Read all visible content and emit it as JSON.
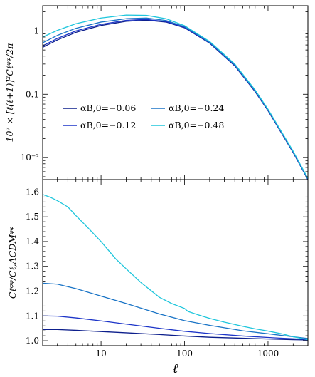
{
  "chart_data": [
    {
      "type": "line",
      "panel": "top",
      "title": "",
      "xlabel": "",
      "ylabel": "10⁷ × [ℓ(ℓ+1)]²Cℓᵠᵠ/2π",
      "xscale": "log",
      "yscale": "log",
      "xlim": [
        2,
        3000
      ],
      "ylim": [
        0.0045,
        2.5
      ],
      "yticks": [
        0.01,
        0.1,
        1
      ],
      "yticklabels": [
        "10⁻²",
        "0.1",
        "1"
      ],
      "legend_position": "center-left",
      "series": [
        {
          "name": "αB,0=−0.06",
          "color": "#0d1f8c",
          "x": [
            2,
            3,
            5,
            10,
            20,
            35,
            60,
            100,
            200,
            400,
            700,
            1000,
            2000,
            3000
          ],
          "y": [
            0.55,
            0.72,
            0.95,
            1.22,
            1.42,
            1.48,
            1.38,
            1.12,
            0.64,
            0.28,
            0.11,
            0.055,
            0.012,
            0.0045
          ]
        },
        {
          "name": "αB,0=−0.12",
          "color": "#1c34c8",
          "x": [
            2,
            3,
            5,
            10,
            20,
            35,
            60,
            100,
            200,
            400,
            700,
            1000,
            2000,
            3000
          ],
          "y": [
            0.58,
            0.76,
            1.0,
            1.27,
            1.47,
            1.52,
            1.41,
            1.14,
            0.65,
            0.285,
            0.112,
            0.056,
            0.0122,
            0.0045
          ]
        },
        {
          "name": "αB,0=−0.24",
          "color": "#1a74c6",
          "x": [
            2,
            3,
            5,
            10,
            20,
            35,
            60,
            100,
            200,
            400,
            700,
            1000,
            2000,
            3000
          ],
          "y": [
            0.65,
            0.85,
            1.1,
            1.38,
            1.56,
            1.6,
            1.46,
            1.17,
            0.66,
            0.29,
            0.114,
            0.057,
            0.0124,
            0.0046
          ]
        },
        {
          "name": "αB,0=−0.48",
          "color": "#1ec6dc",
          "x": [
            2,
            3,
            5,
            10,
            20,
            35,
            60,
            100,
            200,
            400,
            700,
            1000,
            2000,
            3000
          ],
          "y": [
            0.8,
            1.02,
            1.3,
            1.6,
            1.78,
            1.76,
            1.56,
            1.21,
            0.68,
            0.3,
            0.117,
            0.058,
            0.0126,
            0.0047
          ]
        }
      ]
    },
    {
      "type": "line",
      "panel": "bottom",
      "title": "",
      "xlabel": "ℓ",
      "ylabel": "Cℓᵠᵠ/Cℓ,ΛCDMᵠᵠ",
      "xscale": "log",
      "yscale": "linear",
      "xlim": [
        2,
        3000
      ],
      "ylim": [
        0.98,
        1.65
      ],
      "xticks": [
        10,
        100,
        1000
      ],
      "xticklabels": [
        "10",
        "100",
        "1000"
      ],
      "yticks": [
        1.0,
        1.1,
        1.2,
        1.3,
        1.4,
        1.5,
        1.6
      ],
      "yticklabels": [
        "1.0",
        "1.1",
        "1.2",
        "1.3",
        "1.4",
        "1.5",
        "1.6"
      ],
      "series": [
        {
          "name": "αB,0=−0.06",
          "color": "#0d1f8c",
          "x": [
            2,
            3,
            5,
            10,
            20,
            50,
            100,
            200,
            500,
            1000,
            2000,
            3000
          ],
          "y": [
            1.045,
            1.045,
            1.042,
            1.037,
            1.032,
            1.025,
            1.019,
            1.014,
            1.01,
            1.007,
            1.004,
            1.003
          ]
        },
        {
          "name": "αB,0=−0.12",
          "color": "#1c34c8",
          "x": [
            2,
            3,
            5,
            10,
            20,
            50,
            100,
            200,
            500,
            1000,
            2000,
            3000
          ],
          "y": [
            1.1,
            1.099,
            1.092,
            1.08,
            1.067,
            1.05,
            1.038,
            1.029,
            1.019,
            1.013,
            1.008,
            1.005
          ]
        },
        {
          "name": "αB,0=−0.24",
          "color": "#1a74c6",
          "x": [
            2,
            3,
            5,
            10,
            20,
            50,
            100,
            200,
            500,
            1000,
            2000,
            3000
          ],
          "y": [
            1.232,
            1.228,
            1.21,
            1.18,
            1.15,
            1.108,
            1.081,
            1.062,
            1.04,
            1.028,
            1.016,
            1.009
          ]
        },
        {
          "name": "αB,0=−0.48",
          "color": "#1ec6dc",
          "x": [
            2,
            2.5,
            3,
            4,
            5,
            7,
            10,
            15,
            20,
            30,
            50,
            70,
            100,
            110,
            150,
            200,
            300,
            500,
            700,
            1000,
            1500,
            2000,
            3000
          ],
          "y": [
            1.59,
            1.578,
            1.565,
            1.54,
            1.505,
            1.455,
            1.4,
            1.33,
            1.29,
            1.235,
            1.175,
            1.15,
            1.13,
            1.118,
            1.103,
            1.09,
            1.075,
            1.058,
            1.048,
            1.039,
            1.027,
            1.016,
            1.004
          ]
        }
      ]
    }
  ]
}
